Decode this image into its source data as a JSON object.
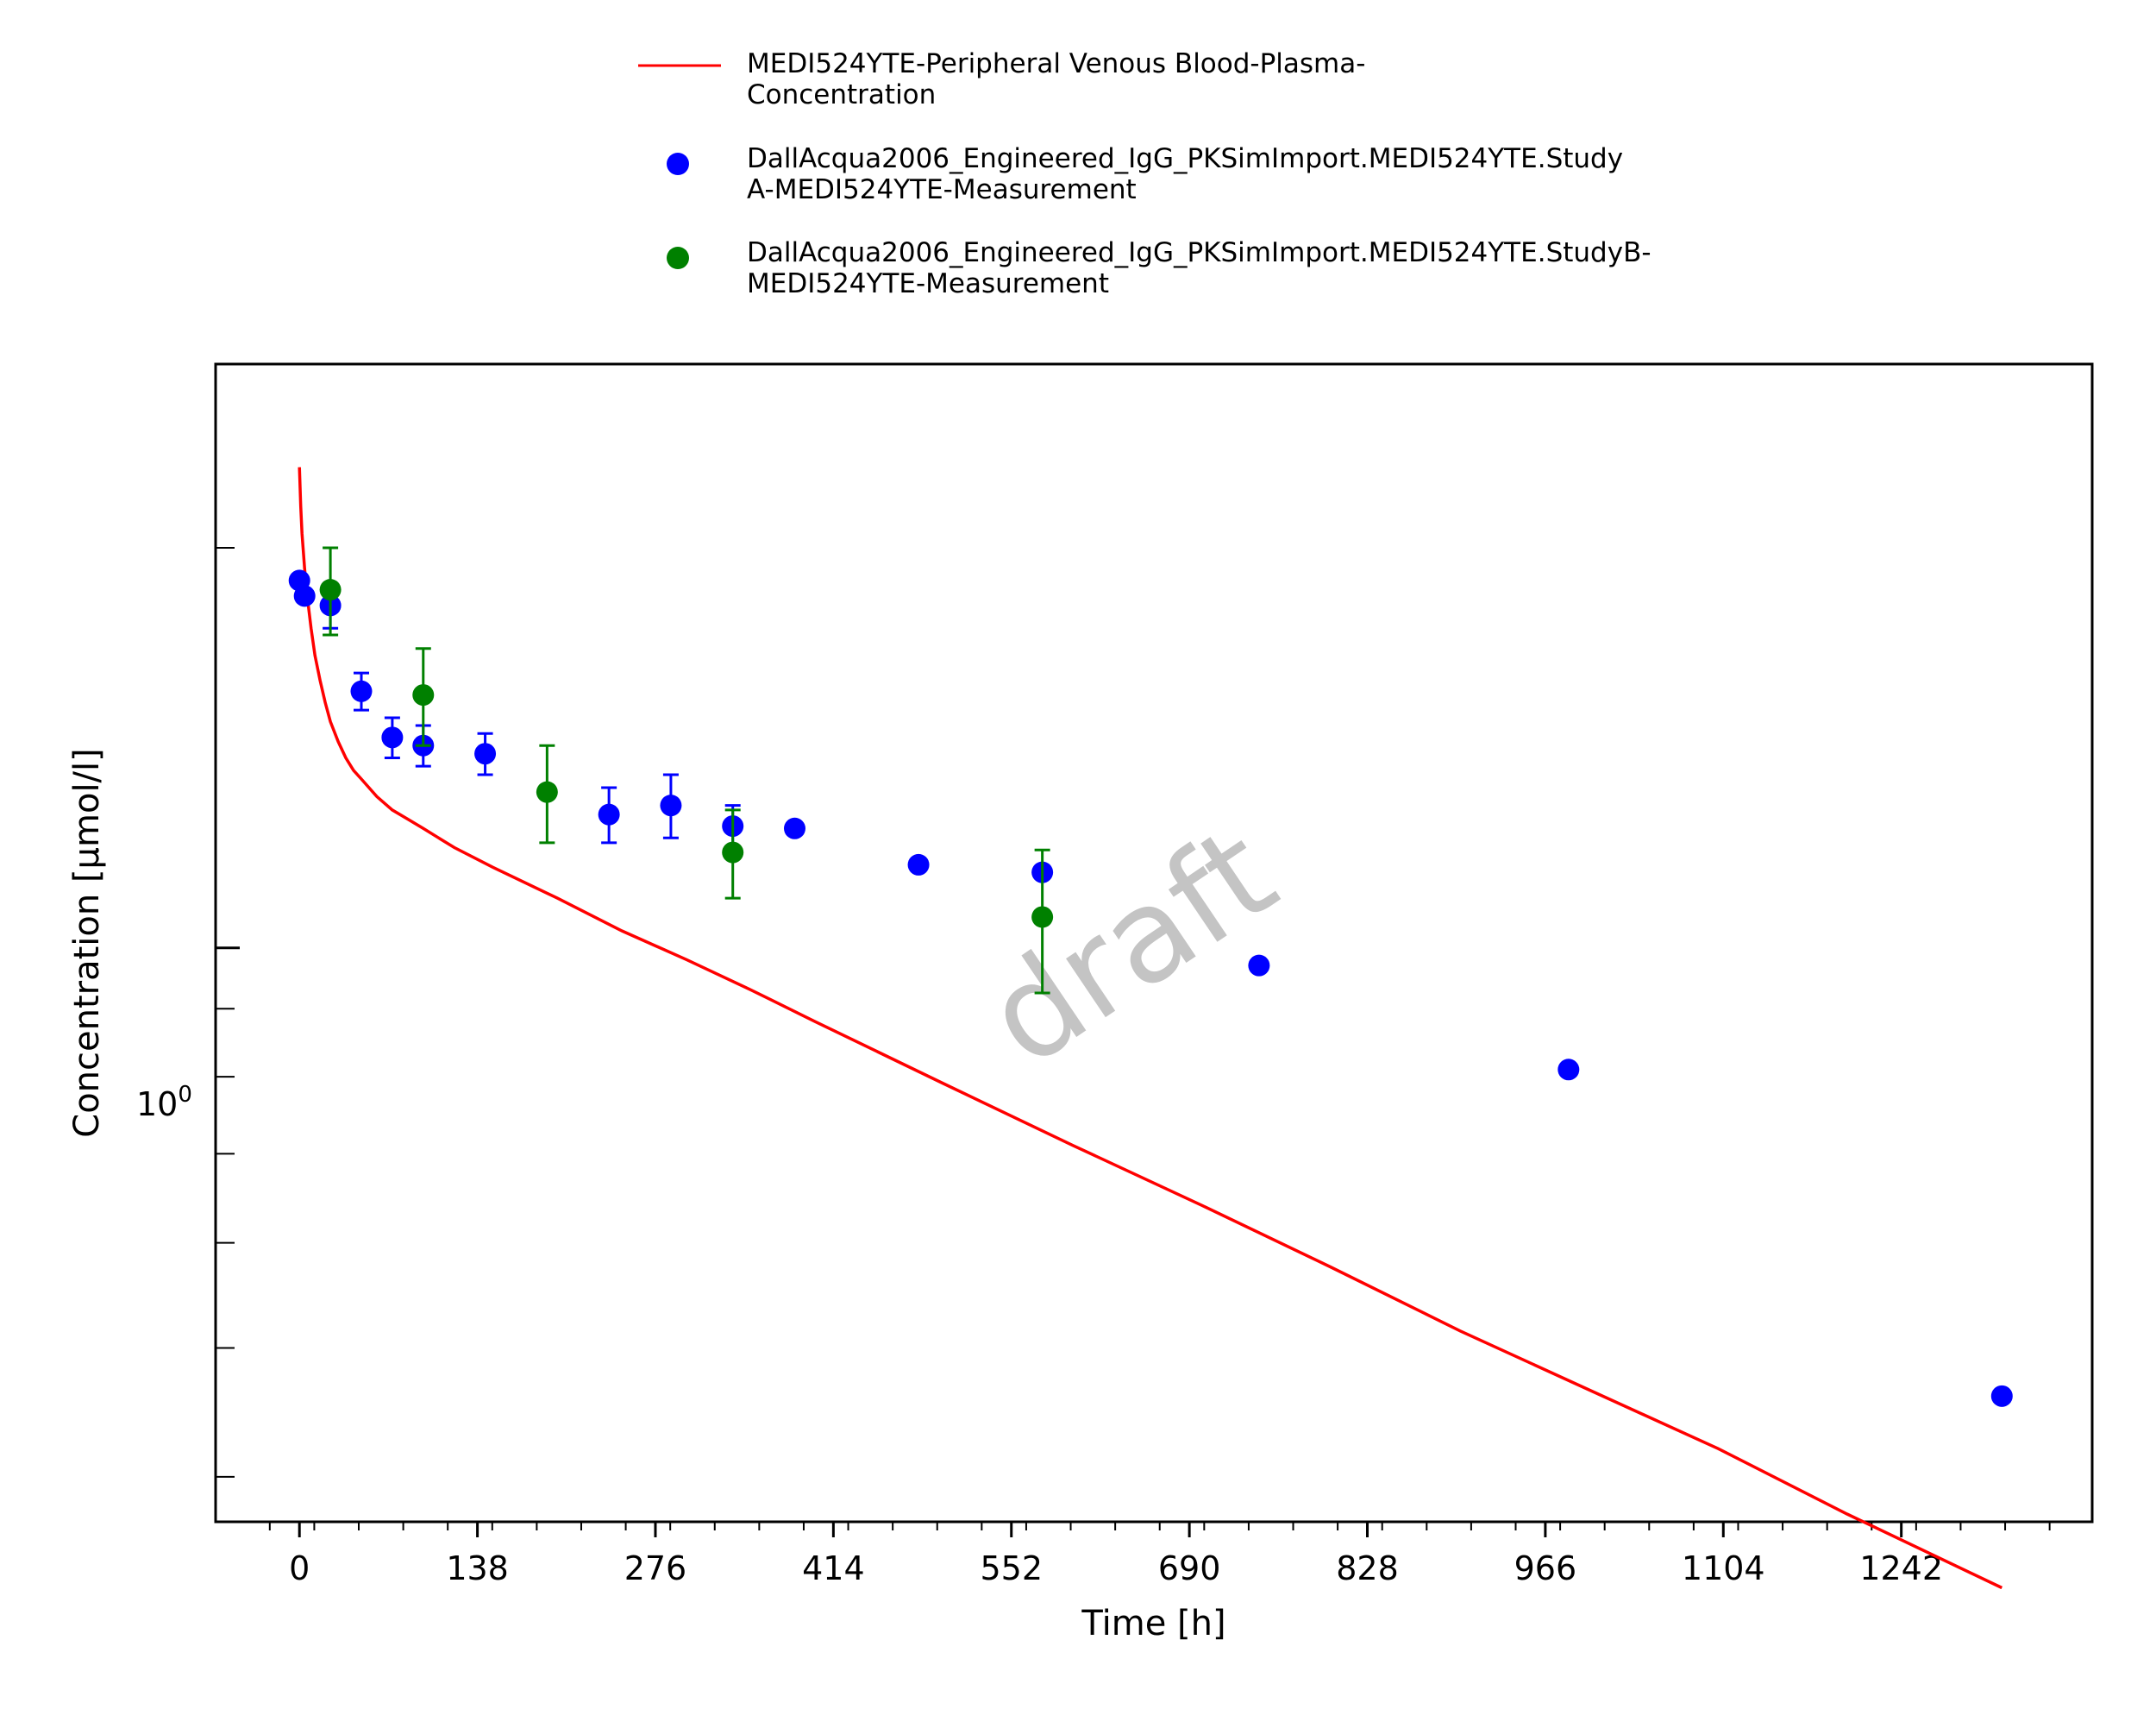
{
  "chart_data": {
    "type": "scatter",
    "xlabel": "Time [h]",
    "ylabel": "Concentration [µmol/l]",
    "y_scale": "log",
    "xlim": [
      -65,
      1390
    ],
    "ylim": [
      0.37,
      2.75
    ],
    "x_ticks": [
      0,
      138,
      276,
      414,
      552,
      690,
      828,
      966,
      1104,
      1242
    ],
    "x_tick_labels": [
      "0",
      "138",
      "276",
      "414",
      "552",
      "690",
      "828",
      "966",
      "1104",
      "1242"
    ],
    "y_tick_label_base": "10",
    "y_tick_label_exp": "0",
    "grid": false,
    "legend_position": "top-center",
    "watermark": "draft",
    "series": [
      {
        "name": "MEDI524YTE-Peripheral Venous Blood-Plasma-Concentration",
        "name_lines": [
          "MEDI524YTE-Peripheral Venous Blood-Plasma-",
          "Concentration"
        ],
        "kind": "line",
        "color": "#ff0000",
        "x": [
          0,
          1,
          2,
          4,
          6,
          9,
          12,
          16,
          20,
          24,
          30,
          36,
          42,
          48,
          60,
          72,
          84,
          96,
          120,
          150,
          200,
          250,
          300,
          350,
          400,
          500,
          600,
          700,
          800,
          900,
          1000,
          1100,
          1200,
          1320
        ],
        "y": [
          2.3,
          2.15,
          2.05,
          1.93,
          1.84,
          1.74,
          1.66,
          1.59,
          1.53,
          1.48,
          1.43,
          1.39,
          1.36,
          1.34,
          1.3,
          1.27,
          1.25,
          1.23,
          1.19,
          1.15,
          1.09,
          1.03,
          0.98,
          0.93,
          0.88,
          0.79,
          0.71,
          0.64,
          0.575,
          0.515,
          0.465,
          0.42,
          0.375,
          0.33
        ]
      },
      {
        "name": "DallAcqua2006_Engineered_IgG_PKSimImport.MEDI524YTE.StudyA-MEDI524YTE-Measurement",
        "name_lines": [
          "DallAcqua2006_Engineered_IgG_PKSimImport.MEDI524YTE.Study",
          "A-MEDI524YTE-Measurement"
        ],
        "kind": "scatter",
        "color": "#0000ff",
        "x": [
          0,
          4,
          24,
          48,
          72,
          96,
          144,
          240,
          288,
          336,
          384,
          480,
          576,
          744,
          984,
          1320
        ],
        "y": [
          1.89,
          1.84,
          1.81,
          1.56,
          1.44,
          1.42,
          1.4,
          1.26,
          1.28,
          1.235,
          1.23,
          1.155,
          1.14,
          0.97,
          0.81,
          0.46
        ],
        "yerr": [
          0,
          0,
          0.07,
          0.05,
          0.05,
          0.05,
          0.05,
          0.06,
          0.07,
          0.045,
          0,
          0,
          0,
          0,
          0,
          0
        ]
      },
      {
        "name": "DallAcqua2006_Engineered_IgG_PKSimImport.MEDI524YTE.StudyB-MEDI524YTE-Measurement",
        "name_lines": [
          "DallAcqua2006_Engineered_IgG_PKSimImport.MEDI524YTE.StudyB-",
          "MEDI524YTE-Measurement"
        ],
        "kind": "scatter",
        "color": "#008000",
        "x": [
          24,
          96,
          192,
          336,
          576
        ],
        "y": [
          1.86,
          1.55,
          1.31,
          1.18,
          1.055
        ],
        "yerr": [
          0.14,
          0.13,
          0.11,
          0.09,
          0.13
        ]
      }
    ]
  }
}
